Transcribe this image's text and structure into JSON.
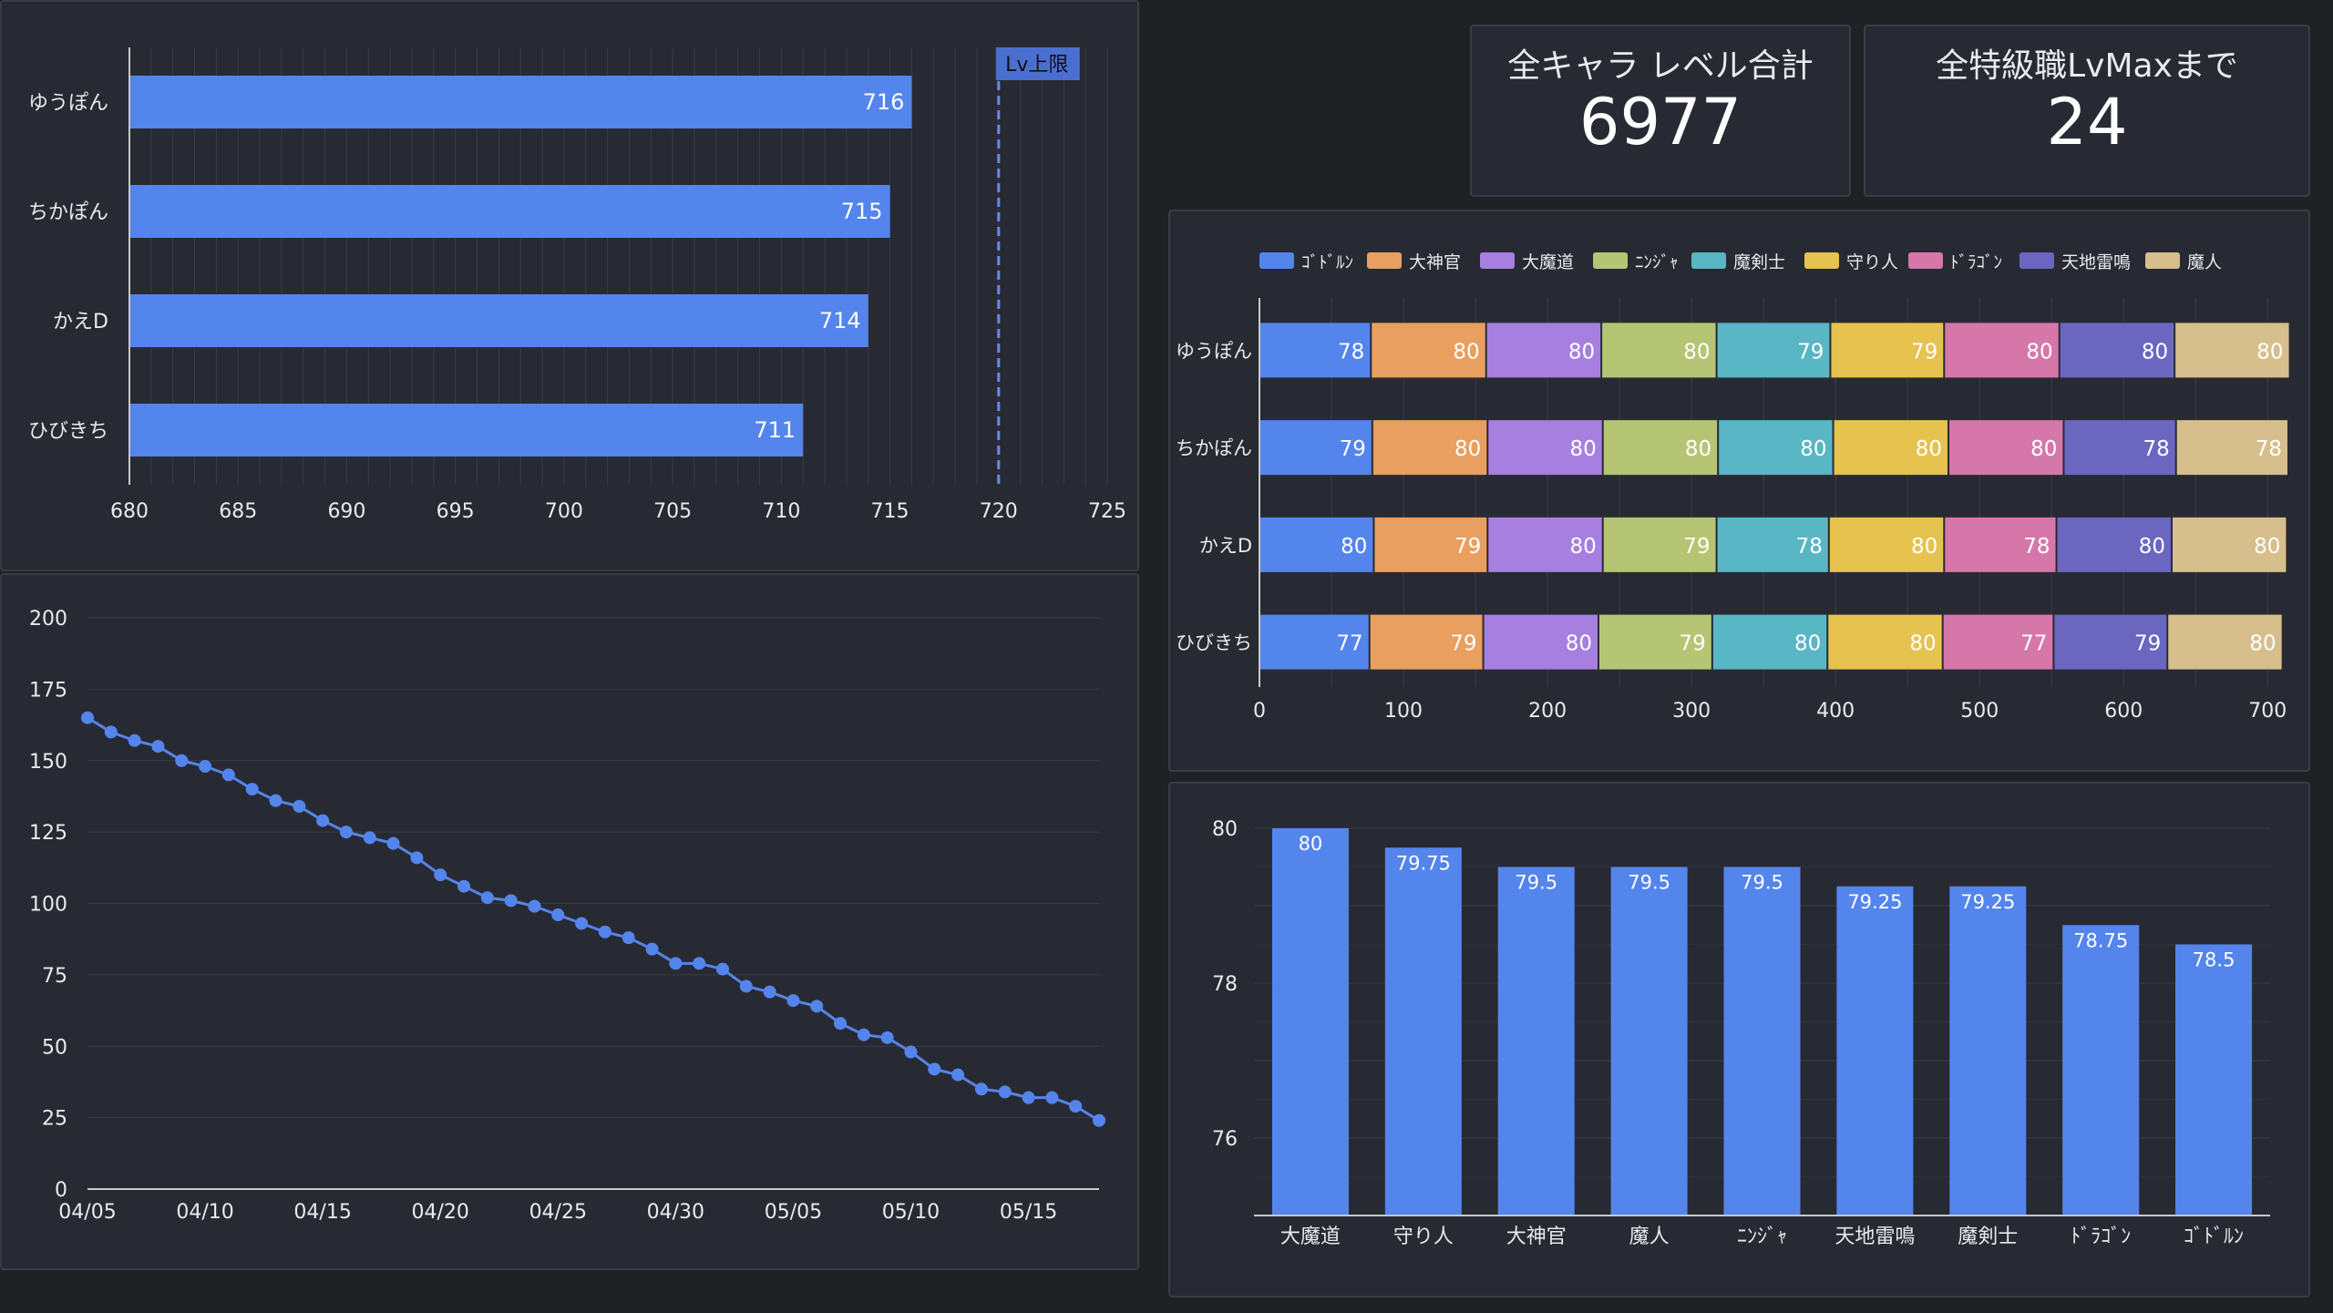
{
  "kpis": {
    "total_level": {
      "label": "全キャラ レベル合計",
      "value": "6977"
    },
    "remaining": {
      "label": "全特級職LvMaxまで",
      "value": "24"
    }
  },
  "chart_data": [
    {
      "id": "char-total",
      "type": "bar",
      "orientation": "horizontal",
      "categories": [
        "ゆうぽん",
        "ちかぽん",
        "かえD",
        "ひびきち"
      ],
      "values": [
        716,
        715,
        714,
        711
      ],
      "xlim": [
        680,
        725
      ],
      "xticks": [
        680,
        685,
        690,
        695,
        700,
        705,
        710,
        715,
        720,
        725
      ],
      "reference_line": {
        "value": 720,
        "label": "Lv上限"
      },
      "color": "#5485ec",
      "grid": true
    },
    {
      "id": "remaining-trend",
      "type": "line",
      "x": [
        "04/05",
        "04/06",
        "04/07",
        "04/08",
        "04/09",
        "04/10",
        "04/11",
        "04/12",
        "04/13",
        "04/14",
        "04/15",
        "04/16",
        "04/17",
        "04/18",
        "04/19",
        "04/20",
        "04/21",
        "04/22",
        "04/23",
        "04/24",
        "04/25",
        "04/26",
        "04/27",
        "04/28",
        "04/29",
        "04/30",
        "05/01",
        "05/02",
        "05/03",
        "05/04",
        "05/05",
        "05/06",
        "05/07",
        "05/08",
        "05/09",
        "05/10",
        "05/11",
        "05/12",
        "05/13",
        "05/14",
        "05/15",
        "05/16",
        "05/17",
        "05/18"
      ],
      "values": [
        165,
        160,
        157,
        155,
        150,
        148,
        145,
        140,
        136,
        134,
        129,
        125,
        123,
        121,
        116,
        110,
        106,
        102,
        101,
        99,
        96,
        93,
        90,
        88,
        84,
        79,
        79,
        77,
        71,
        69,
        66,
        64,
        58,
        54,
        53,
        48,
        42,
        40,
        35,
        34,
        32,
        32,
        29,
        24
      ],
      "xticks": [
        "04/05",
        "04/10",
        "04/15",
        "04/20",
        "04/25",
        "04/30",
        "05/05",
        "05/10",
        "05/15"
      ],
      "ylim": [
        0,
        200
      ],
      "yticks": [
        0,
        25,
        50,
        75,
        100,
        125,
        150,
        175,
        200
      ],
      "color": "#5485ec",
      "grid": true
    },
    {
      "id": "char-job-stacked",
      "type": "bar",
      "orientation": "horizontal",
      "stacked": true,
      "categories": [
        "ゆうぽん",
        "ちかぽん",
        "かえD",
        "ひびきち"
      ],
      "series": [
        {
          "name": "ｺﾞﾄﾞﾙﾝ",
          "color": "#5485ec",
          "values": [
            78,
            79,
            80,
            77
          ]
        },
        {
          "name": "大神官",
          "color": "#e99f5f",
          "values": [
            80,
            80,
            79,
            79
          ]
        },
        {
          "name": "大魔道",
          "color": "#a77fe0",
          "values": [
            80,
            80,
            80,
            80
          ]
        },
        {
          "name": "ﾆﾝｼﾞｬ",
          "color": "#b5c574",
          "values": [
            80,
            80,
            79,
            79
          ]
        },
        {
          "name": "魔剣士",
          "color": "#58b6c5",
          "values": [
            79,
            80,
            78,
            80
          ]
        },
        {
          "name": "守り人",
          "color": "#e6c24e",
          "values": [
            79,
            80,
            80,
            80
          ]
        },
        {
          "name": "ﾄﾞﾗｺﾞﾝ",
          "color": "#d677aa",
          "values": [
            80,
            80,
            78,
            77
          ]
        },
        {
          "name": "天地雷鳴",
          "color": "#6b67c1",
          "values": [
            80,
            78,
            80,
            79
          ]
        },
        {
          "name": "魔人",
          "color": "#d6bf8c",
          "values": [
            80,
            78,
            80,
            80
          ]
        }
      ],
      "xlim": [
        0,
        715
      ],
      "xticks": [
        0,
        100,
        200,
        300,
        400,
        500,
        600,
        700
      ],
      "legend": "top",
      "grid": true
    },
    {
      "id": "job-average",
      "type": "bar",
      "categories": [
        "大魔道",
        "守り人",
        "大神官",
        "魔人",
        "ﾆﾝｼﾞｬ",
        "天地雷鳴",
        "魔剣士",
        "ﾄﾞﾗｺﾞﾝ",
        "ｺﾞﾄﾞﾙﾝ"
      ],
      "values": [
        80,
        79.75,
        79.5,
        79.5,
        79.5,
        79.25,
        79.25,
        78.75,
        78.5
      ],
      "ylim": [
        75,
        80
      ],
      "yticks": [
        76,
        78,
        80
      ],
      "color": "#5485ec",
      "grid": true
    }
  ]
}
